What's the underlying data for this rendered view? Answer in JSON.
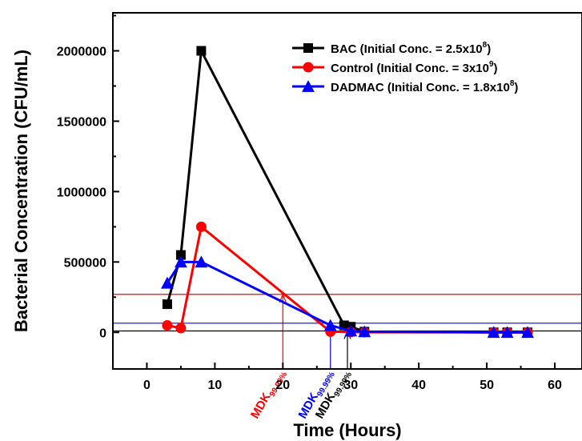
{
  "chart_data": {
    "type": "line",
    "xlabel": "Time (Hours)",
    "ylabel": "Bacterial Concentration (CFU/mL)",
    "xlim": [
      -5,
      64
    ],
    "ylim": [
      -260000,
      2270000
    ],
    "x_ticks": [
      0,
      10,
      20,
      30,
      40,
      50,
      60
    ],
    "y_ticks": [
      0,
      500000,
      1000000,
      1500000,
      2000000
    ],
    "legend_position": "top-right",
    "grid": false,
    "series": [
      {
        "name_main": "BAC (Initial Conc. = 2.5x10",
        "name_exp": "8",
        "name_end": ")",
        "color": "#000000",
        "marker": "square",
        "x": [
          3,
          5,
          8,
          29,
          30,
          32,
          51,
          53,
          56
        ],
        "y": [
          200000,
          550000,
          2000000,
          50000,
          40000,
          5000,
          0,
          0,
          0
        ]
      },
      {
        "name_main": "Control (Initial Conc. = 3x10",
        "name_exp": "9",
        "name_end": ")",
        "color": "#ff0000",
        "marker": "circle",
        "x": [
          3,
          5,
          8,
          27,
          30,
          32,
          51,
          53,
          56
        ],
        "y": [
          50000,
          30000,
          750000,
          5000,
          2000,
          1000,
          0,
          0,
          0
        ]
      },
      {
        "name_main": "DADMAC (Initial Conc. = 1.8x10",
        "name_exp": "8",
        "name_end": ")",
        "color": "#0000ff",
        "marker": "triangle",
        "x": [
          3,
          5,
          8,
          27,
          30,
          32,
          51,
          53,
          56
        ],
        "y": [
          350000,
          500000,
          500000,
          50000,
          10000,
          5000,
          0,
          0,
          0
        ]
      }
    ],
    "annotations": [
      {
        "label": "MDK",
        "subscript": "99.99%",
        "color": "#ff0000",
        "hline_y": 270000,
        "x": 20,
        "y_top": 270000
      },
      {
        "label": "MDK",
        "subscript": "99.99%",
        "color": "#0000ff",
        "hline_y": 65000,
        "x": 27,
        "y_top": 65000
      },
      {
        "label": "MDK",
        "subscript": "99.99%",
        "color": "#000000",
        "hline_y": 10000,
        "x": 29.5,
        "y_top": 10000
      }
    ]
  }
}
